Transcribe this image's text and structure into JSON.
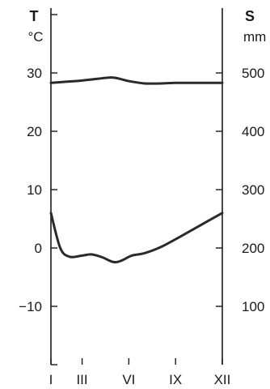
{
  "chart_data": {
    "type": "line",
    "left_axis": {
      "title": "T",
      "unit": "°C",
      "ylim": [
        -20,
        40
      ],
      "ticks": [
        40,
        30,
        20,
        10,
        0,
        -10,
        -20
      ],
      "tick_labels": [
        "30",
        "20",
        "10",
        "0",
        "−10"
      ],
      "tick_label_values": [
        30,
        20,
        10,
        0,
        -10
      ]
    },
    "right_axis": {
      "title": "S",
      "unit": "mm",
      "ylim": [
        0,
        600
      ],
      "ticks": [
        500,
        400,
        300,
        200,
        100
      ],
      "tick_labels": [
        "500",
        "400",
        "300",
        "200",
        "100"
      ],
      "tick_label_values": [
        500,
        400,
        300,
        200,
        100
      ]
    },
    "x_axis": {
      "ticks": [
        1,
        3,
        6,
        9,
        12
      ],
      "tick_labels": [
        "I",
        "III",
        "VI",
        "IX",
        "XII"
      ]
    },
    "series": [
      {
        "axis": "right",
        "color": "#2a2a2a",
        "x": [
          1,
          2,
          3,
          4,
          5,
          6,
          7,
          8,
          9,
          10,
          11,
          12
        ],
        "y": [
          483,
          485,
          487,
          490,
          492,
          486,
          482,
          482,
          483,
          483,
          483,
          483
        ]
      },
      {
        "axis": "left",
        "color": "#2a2a2a",
        "x": [
          1,
          1.6,
          2.2,
          3,
          3.6,
          4.3,
          5,
          5.5,
          6.2,
          7,
          8,
          9,
          10,
          11,
          12
        ],
        "y": [
          6,
          0,
          -1.5,
          -1.3,
          -1.1,
          -1.6,
          -2.4,
          -2.2,
          -1.3,
          -0.9,
          0.1,
          1.5,
          3,
          4.5,
          6
        ]
      }
    ]
  }
}
